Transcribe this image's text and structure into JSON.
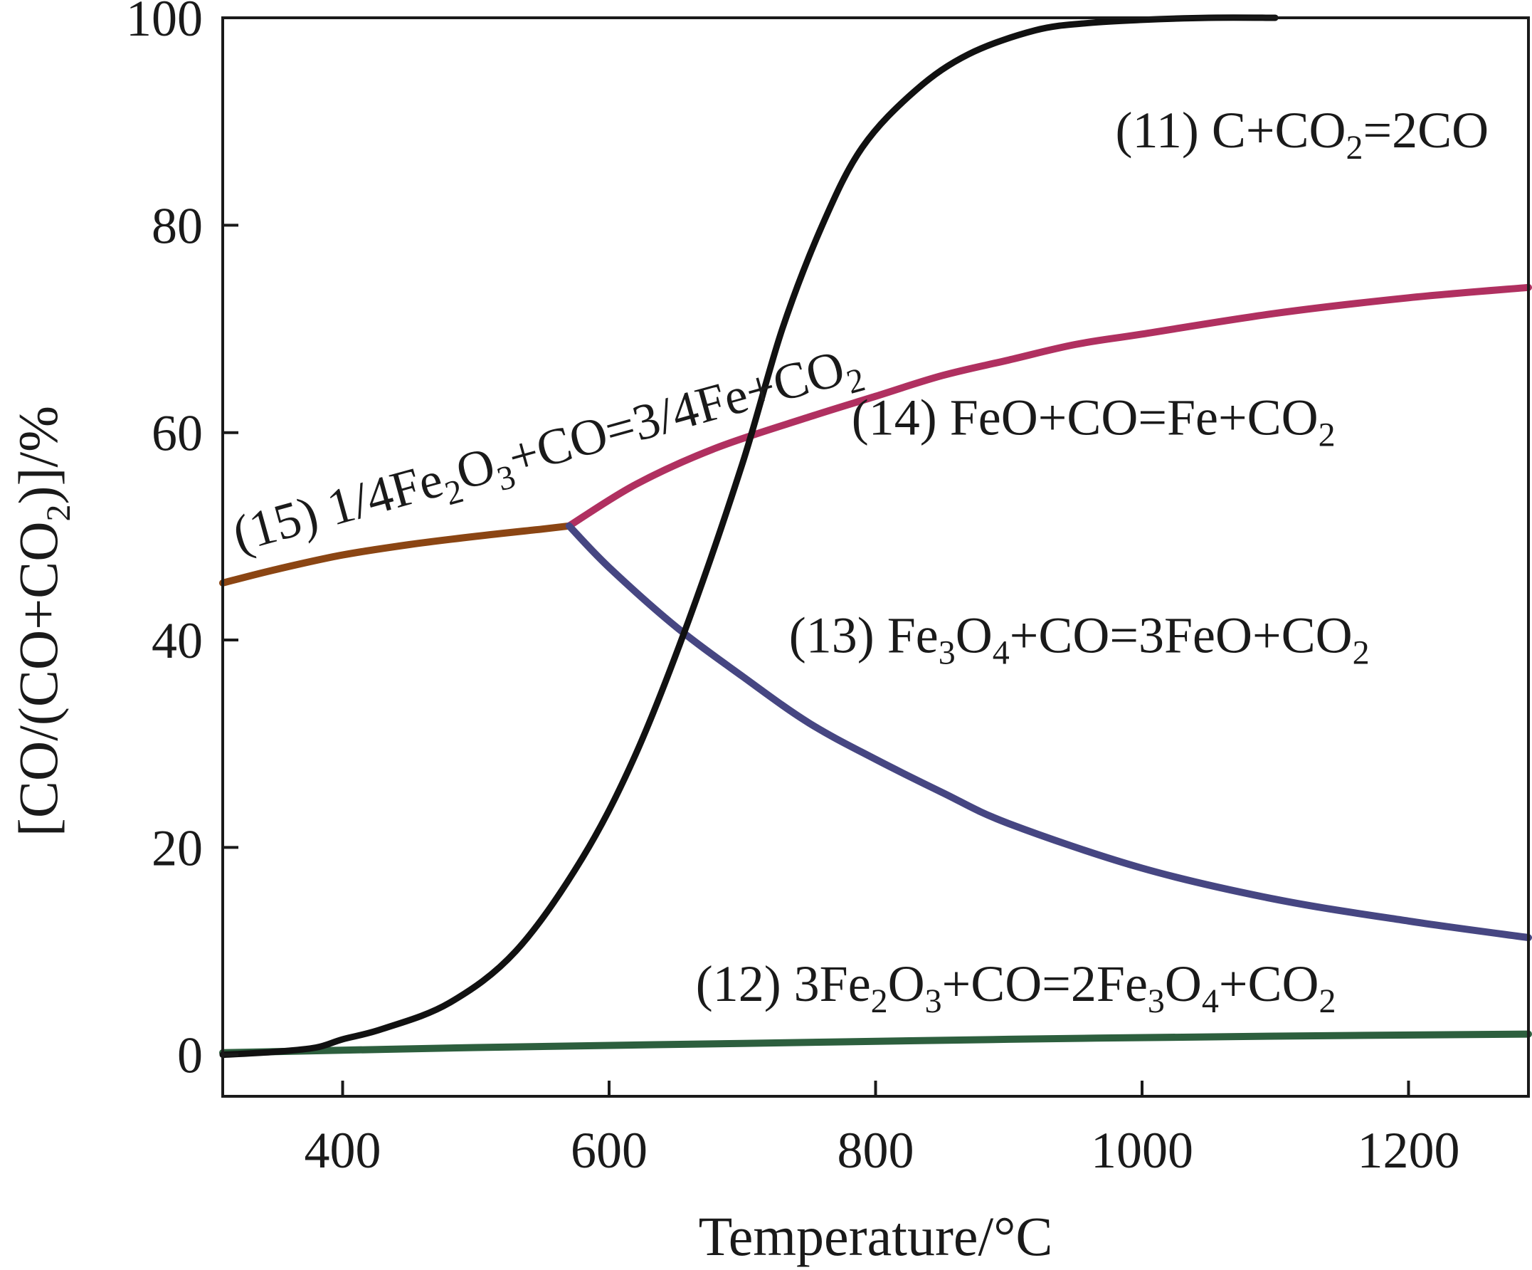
{
  "chart_data": {
    "type": "line",
    "title": "",
    "xlabel": "Temperature/°C",
    "ylabel": "[CO/(CO+CO₂)]/%",
    "xlim": [
      310,
      1290
    ],
    "ylim": [
      -4,
      100
    ],
    "xticks": [
      400,
      600,
      800,
      1000,
      1200
    ],
    "yticks": [
      0,
      20,
      40,
      60,
      80,
      100
    ],
    "grid": false,
    "legend": "none (inline labels)",
    "series": [
      {
        "id": "r11",
        "name": "(11) C+CO2=2CO",
        "color": "#111111",
        "label_parts": [
          [
            "(11) C+CO",
            0
          ],
          [
            "2",
            -1
          ],
          [
            "=2CO",
            0
          ]
        ],
        "x": [
          310,
          350,
          380,
          400,
          430,
          480,
          530,
          580,
          620,
          660,
          700,
          730,
          760,
          790,
          830,
          870,
          920,
          960,
          1000,
          1050,
          1100
        ],
        "y": [
          0,
          0.3,
          0.7,
          1.5,
          2.5,
          5,
          10,
          19,
          29,
          42,
          57,
          70,
          80,
          87.5,
          93,
          96.5,
          98.8,
          99.5,
          99.8,
          100,
          100
        ]
      },
      {
        "id": "r12",
        "name": "(12) 3Fe2O3+CO=2Fe3O4+CO2",
        "color": "#2d5f3e",
        "label_parts": [
          [
            "(12) 3Fe",
            0
          ],
          [
            "2",
            -1
          ],
          [
            "O",
            0
          ],
          [
            "3",
            -1
          ],
          [
            "+CO=2Fe",
            0
          ],
          [
            "3",
            -1
          ],
          [
            "O",
            0
          ],
          [
            "4",
            -1
          ],
          [
            "+CO",
            0
          ],
          [
            "2",
            -1
          ]
        ],
        "x": [
          310,
          500,
          700,
          900,
          1100,
          1290
        ],
        "y": [
          0.2,
          0.7,
          1.1,
          1.5,
          1.8,
          2
        ]
      },
      {
        "id": "r13",
        "name": "(13) Fe3O4+CO=3FeO+CO2",
        "color": "#464682",
        "label_parts": [
          [
            "(13) Fe",
            0
          ],
          [
            "3",
            -1
          ],
          [
            "O",
            0
          ],
          [
            "4",
            -1
          ],
          [
            "+CO=3FeO+CO",
            0
          ],
          [
            "2",
            -1
          ]
        ],
        "x": [
          570,
          600,
          650,
          700,
          750,
          800,
          850,
          900,
          1000,
          1100,
          1200,
          1290
        ],
        "y": [
          51,
          47,
          41.3,
          36.5,
          32,
          28.5,
          25.3,
          22.3,
          18,
          15,
          12.9,
          11.3
        ]
      },
      {
        "id": "r14",
        "name": "(14) FeO+CO=Fe+CO2",
        "color": "#b03060",
        "label_parts": [
          [
            "(14) FeO+CO=Fe+CO",
            0
          ],
          [
            "2",
            -1
          ]
        ],
        "x": [
          570,
          620,
          680,
          750,
          800,
          850,
          900,
          950,
          1000,
          1100,
          1200,
          1290
        ],
        "y": [
          51,
          55,
          58.5,
          61.5,
          63.5,
          65.5,
          67,
          68.5,
          69.5,
          71.5,
          73,
          74
        ]
      },
      {
        "id": "r15",
        "name": "(15) 1/4Fe2O3+CO=3/4Fe+CO2",
        "color": "#8b4513",
        "label_parts": [
          [
            "(15) 1/4Fe",
            0
          ],
          [
            "2",
            -1
          ],
          [
            "O",
            0
          ],
          [
            "3",
            -1
          ],
          [
            "+CO=3/4Fe+CO",
            0
          ],
          [
            "2",
            -1
          ]
        ],
        "x": [
          310,
          350,
          400,
          450,
          500,
          550,
          570
        ],
        "y": [
          45.5,
          46.8,
          48.2,
          49.2,
          50,
          50.7,
          51
        ]
      }
    ],
    "annotations": [
      {
        "series": "r11",
        "x": 980,
        "y": 87.5,
        "anchor": "start",
        "angle": 0
      },
      {
        "series": "r14",
        "x": 782,
        "y": 59.8,
        "anchor": "start",
        "angle": 0
      },
      {
        "series": "r13",
        "x": 735,
        "y": 38.8,
        "anchor": "start",
        "angle": 0
      },
      {
        "series": "r12",
        "x": 665,
        "y": 5.2,
        "anchor": "start",
        "angle": 0
      },
      {
        "series": "r15",
        "x": 322,
        "y": 48.5,
        "anchor": "start",
        "angle": -15.5
      }
    ]
  }
}
